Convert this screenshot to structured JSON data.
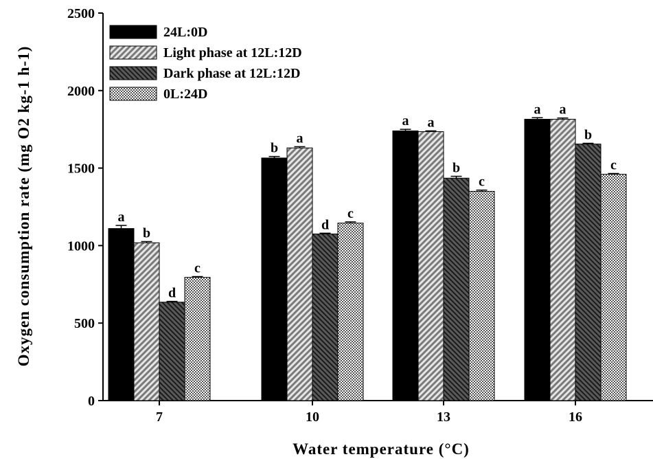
{
  "chart_data": {
    "type": "bar",
    "xlabel": "Water temperature (°C)",
    "ylabel": "Oxygen consumption rate (mg O2 kg-1 h-1)",
    "ylim": [
      0,
      2500
    ],
    "yticks": [
      0,
      500,
      1000,
      1500,
      2000,
      2500
    ],
    "categories": [
      "7",
      "10",
      "13",
      "16"
    ],
    "legend_position": "top-left",
    "series": [
      {
        "name": "24L:0D",
        "pattern": "solid",
        "color": "#000000",
        "values": [
          1110,
          1565,
          1740,
          1815
        ],
        "errors": [
          20,
          10,
          10,
          10
        ],
        "labels": [
          "a",
          "b",
          "a",
          "a"
        ]
      },
      {
        "name": "Light phase at 12L:12D",
        "pattern": "light-diagonal",
        "color": "#9a9a9a",
        "values": [
          1018,
          1630,
          1735,
          1815
        ],
        "errors": [
          8,
          8,
          5,
          8
        ],
        "labels": [
          "b",
          "a",
          "a",
          "a"
        ]
      },
      {
        "name": "Dark phase at 12L:12D",
        "pattern": "dark-diagonal",
        "color": "#444444",
        "values": [
          635,
          1075,
          1435,
          1655
        ],
        "errors": [
          5,
          5,
          12,
          5
        ],
        "labels": [
          "d",
          "d",
          "b",
          "b"
        ]
      },
      {
        "name": "0L:24D",
        "pattern": "crosshatch",
        "color": "#777777",
        "values": [
          795,
          1145,
          1350,
          1460
        ],
        "errors": [
          5,
          8,
          8,
          5
        ],
        "labels": [
          "c",
          "c",
          "c",
          "c"
        ]
      }
    ]
  }
}
